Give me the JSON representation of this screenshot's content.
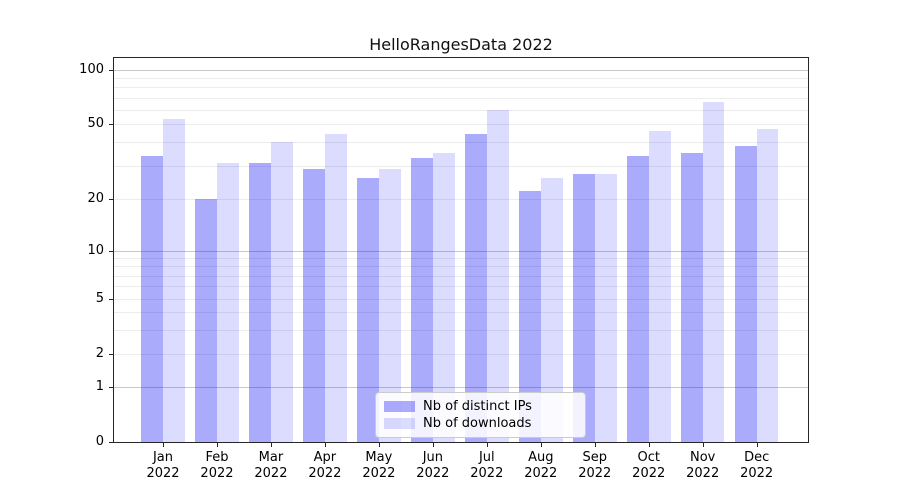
{
  "title": "HelloRangesData 2022",
  "chart_data": {
    "type": "bar",
    "title": "HelloRangesData 2022",
    "xlabel": "",
    "ylabel": "",
    "yscale": "symlog-like (log above 1, linear segment 0-1)",
    "ylim": [
      0,
      100
    ],
    "grid": "both (major and minor horizontal gridlines)",
    "legend_position": "lower center inside plot",
    "y_ticks": [
      0,
      1,
      2,
      5,
      10,
      20,
      50,
      100
    ],
    "y_minor_gridlines": [
      2,
      3,
      4,
      5,
      6,
      7,
      8,
      9,
      20,
      30,
      40,
      50,
      60,
      70,
      80,
      90
    ],
    "y_major_gridlines": [
      1,
      10,
      100
    ],
    "categories": [
      "Jan 2022",
      "Feb 2022",
      "Mar 2022",
      "Apr 2022",
      "May 2022",
      "Jun 2022",
      "Jul 2022",
      "Aug 2022",
      "Sep 2022",
      "Oct 2022",
      "Nov 2022",
      "Dec 2022"
    ],
    "series": [
      {
        "name": "Nb of distinct IPs",
        "color": "rgba(15,15,245,0.35)",
        "color_hex_on_white": "#abaffb",
        "values": [
          34,
          20,
          31,
          29,
          26,
          33,
          44,
          22,
          27,
          34,
          35,
          38
        ]
      },
      {
        "name": "Nb of downloads",
        "color": "rgba(15,15,245,0.145)",
        "color_hex_on_white": "#dcdcfd",
        "values": [
          53,
          31,
          40,
          44,
          29,
          35,
          60,
          26,
          27,
          46,
          66,
          47
        ]
      }
    ]
  },
  "legend": {
    "items": [
      "Nb of distinct IPs",
      "Nb of downloads"
    ]
  }
}
